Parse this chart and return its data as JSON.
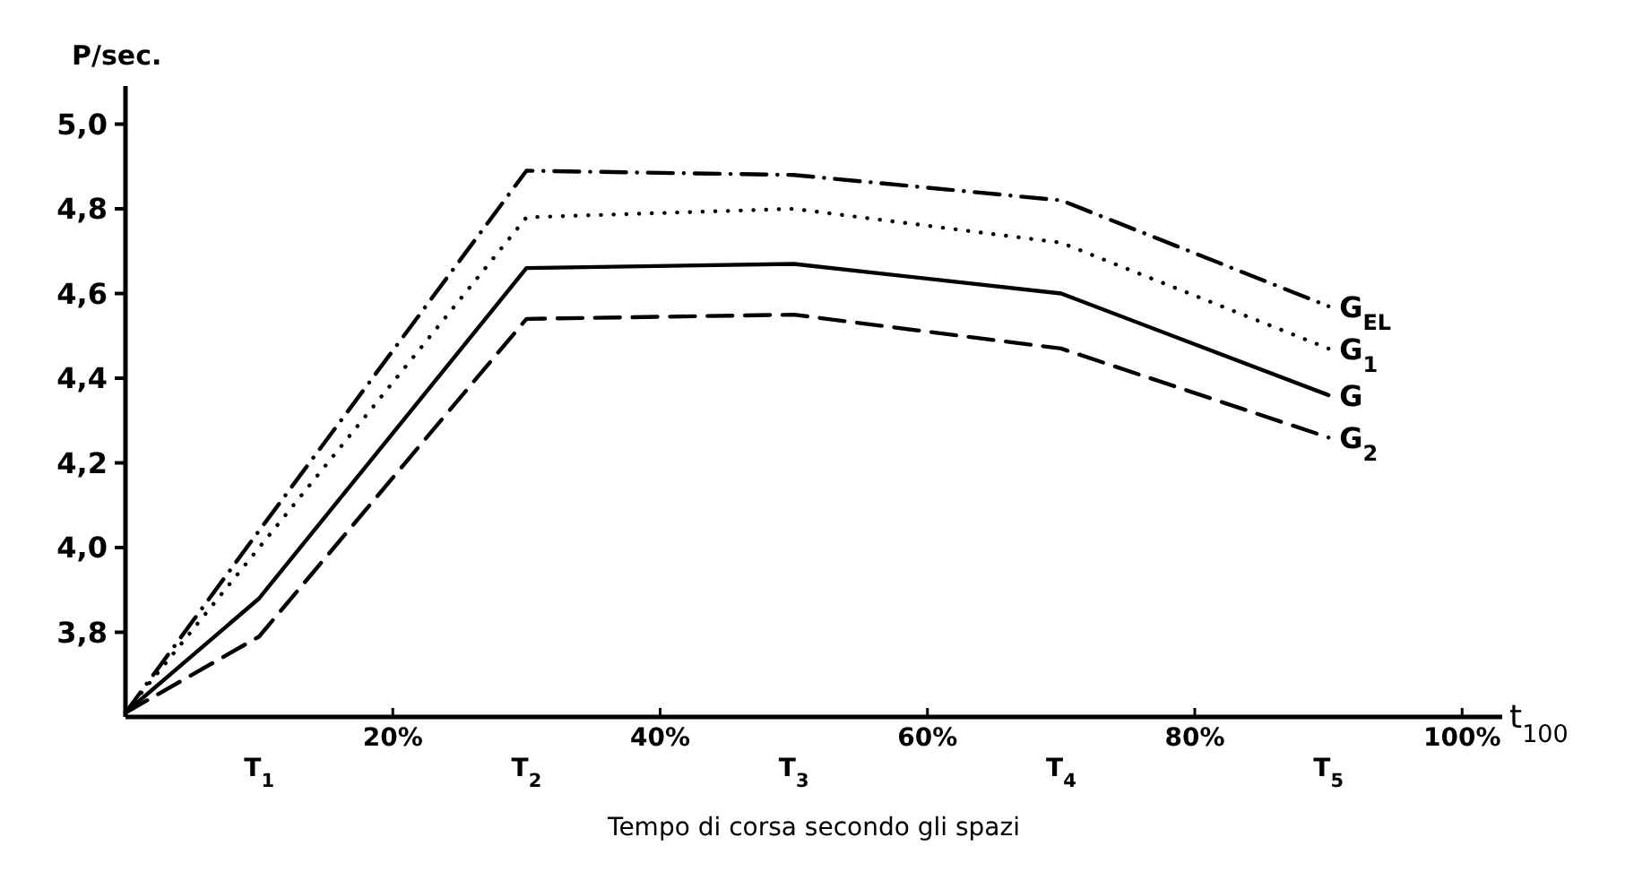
{
  "chart_data": {
    "type": "line",
    "ylabel": "P/sec.",
    "xlabel": "Tempo di corsa secondo gli spazi",
    "annotations": [
      "t$_{100}$",
      "T$_{1}$",
      "T$_{2}$",
      "T$_{3}$",
      "T$_{4}$",
      "T$_{5}$"
    ],
    "x": [
      0,
      10,
      30,
      50,
      70,
      90
    ],
    "xlim": [
      0,
      103
    ],
    "xticks": [
      {
        "value": 20,
        "label": "20%"
      },
      {
        "value": 40,
        "label": "40%"
      },
      {
        "value": 60,
        "label": "60%"
      },
      {
        "value": 80,
        "label": "80%"
      },
      {
        "value": 100,
        "label": "100%"
      }
    ],
    "ylim": [
      3.6,
      5.09
    ],
    "yticks": [
      {
        "value": 3.8,
        "label": "3,8"
      },
      {
        "value": 4.0,
        "label": "4,0"
      },
      {
        "value": 4.2,
        "label": "4,2"
      },
      {
        "value": 4.4,
        "label": "4,4"
      },
      {
        "value": 4.6,
        "label": "4,6"
      },
      {
        "value": 4.8,
        "label": "4,8"
      },
      {
        "value": 5.0,
        "label": "5,0"
      }
    ],
    "grid": false,
    "legend": false,
    "marker": "none",
    "series": [
      {
        "name": "G$_{EL}$",
        "color": "#000000",
        "line_style": "dashdot",
        "values": [
          3.61,
          4.04,
          4.89,
          4.88,
          4.82,
          4.57
        ]
      },
      {
        "name": "G$_{1}$",
        "color": "#000000",
        "line_style": "dotted",
        "values": [
          3.61,
          4.0,
          4.78,
          4.8,
          4.72,
          4.47
        ]
      },
      {
        "name": "G",
        "color": "#000000",
        "line_style": "solid",
        "values": [
          3.61,
          3.88,
          4.66,
          4.67,
          4.6,
          4.36
        ]
      },
      {
        "name": "G$_{2}$",
        "color": "#000000",
        "line_style": "dashed",
        "values": [
          3.61,
          3.79,
          4.54,
          4.55,
          4.47,
          4.26
        ]
      }
    ]
  }
}
